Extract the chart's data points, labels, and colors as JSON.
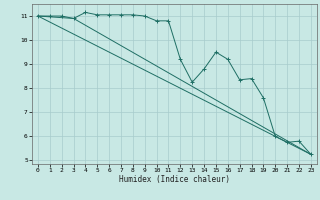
{
  "xlabel": "Humidex (Indice chaleur)",
  "bg_color": "#c8e8e4",
  "line_color": "#1e6e64",
  "grid_color": "#a8cccc",
  "xlim": [
    -0.5,
    23.5
  ],
  "ylim": [
    4.85,
    11.5
  ],
  "yticks": [
    5,
    6,
    7,
    8,
    9,
    10,
    11
  ],
  "xticks": [
    0,
    1,
    2,
    3,
    4,
    5,
    6,
    7,
    8,
    9,
    10,
    11,
    12,
    13,
    14,
    15,
    16,
    17,
    18,
    19,
    20,
    21,
    22,
    23
  ],
  "line1_x": [
    0,
    1,
    2,
    3,
    4,
    5,
    6,
    7,
    8,
    9,
    10,
    11,
    12,
    13,
    14,
    15,
    16,
    17,
    18,
    19,
    20,
    21,
    22,
    23
  ],
  "line1_y": [
    11.0,
    11.0,
    11.0,
    10.9,
    11.15,
    11.05,
    11.05,
    11.05,
    11.05,
    11.0,
    10.8,
    10.8,
    9.2,
    8.25,
    8.8,
    9.5,
    9.2,
    8.35,
    8.4,
    7.6,
    6.0,
    5.75,
    5.8,
    5.25
  ],
  "line2_x": [
    0,
    23
  ],
  "line2_y": [
    11.0,
    5.25
  ],
  "line3_x": [
    0,
    3,
    23
  ],
  "line3_y": [
    11.0,
    10.9,
    5.25
  ]
}
